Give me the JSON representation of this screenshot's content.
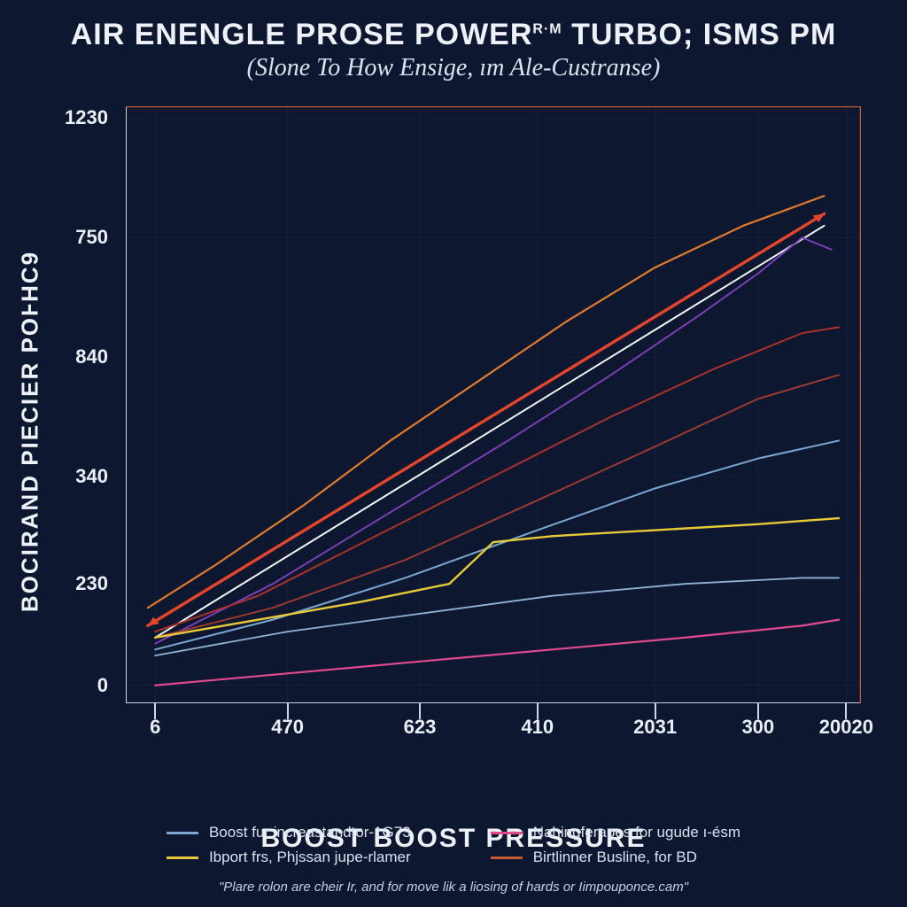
{
  "title_parts": {
    "a": "AIR ENENGLE PROSE POWER",
    "tm": "R·M",
    "b": " TURBO; ISMS PM"
  },
  "subtitle": "(Slone To How Ensige, ım Ale-Custranse)",
  "ylabel": "BOCIRAND PIECIER POⱵHC9",
  "xlabel": "BOOST BOOST PRESSURE",
  "footnote": "\"Plare rolon are cheir Ir, and for move lik a liosing of hards or Iimpouponce.cam\"",
  "chart": {
    "type": "line",
    "background_color": "#0e1730",
    "axis_color": "#d0d6e2",
    "grid_color": "#2a3550",
    "top_border_color": "#c85a2f",
    "right_border_color": "#c85a2f",
    "xlim": [
      0,
      100
    ],
    "ylim": [
      0,
      100
    ],
    "yticks": [
      {
        "pos": 3,
        "label": "0"
      },
      {
        "pos": 20,
        "label": "230"
      },
      {
        "pos": 38,
        "label": "340"
      },
      {
        "pos": 58,
        "label": "840"
      },
      {
        "pos": 78,
        "label": "750"
      },
      {
        "pos": 98,
        "label": "1230"
      }
    ],
    "xticks": [
      {
        "pos": 4,
        "label": "6"
      },
      {
        "pos": 22,
        "label": "470"
      },
      {
        "pos": 40,
        "label": "623"
      },
      {
        "pos": 56,
        "label": "410"
      },
      {
        "pos": 72,
        "label": "2031"
      },
      {
        "pos": 86,
        "label": "300"
      },
      {
        "pos": 98,
        "label": "20020"
      }
    ],
    "series": [
      {
        "name": "orange-top",
        "color": "#e07a2c",
        "width": 2.2,
        "points": [
          [
            3,
            16
          ],
          [
            12,
            23
          ],
          [
            24,
            33
          ],
          [
            36,
            44
          ],
          [
            48,
            54
          ],
          [
            60,
            64
          ],
          [
            72,
            73
          ],
          [
            84,
            80
          ],
          [
            95,
            85
          ]
        ]
      },
      {
        "name": "red-main",
        "color": "#e5452b",
        "width": 3.4,
        "points": [
          [
            3,
            13
          ],
          [
            95,
            82
          ]
        ],
        "arrow_end": true,
        "arrow_start": true
      },
      {
        "name": "white-center",
        "color": "#f3f5fb",
        "width": 2.0,
        "points": [
          [
            4,
            11
          ],
          [
            95,
            80
          ]
        ]
      },
      {
        "name": "purple",
        "color": "#7a3fb5",
        "width": 2.0,
        "points": [
          [
            4,
            10
          ],
          [
            20,
            20
          ],
          [
            36,
            32
          ],
          [
            52,
            44
          ],
          [
            66,
            55
          ],
          [
            78,
            65
          ],
          [
            86,
            72
          ],
          [
            92,
            78
          ],
          [
            96,
            76
          ]
        ]
      },
      {
        "name": "darkred-1",
        "color": "#a8332a",
        "width": 2.0,
        "points": [
          [
            4,
            12
          ],
          [
            18,
            18
          ],
          [
            34,
            28
          ],
          [
            50,
            38
          ],
          [
            66,
            48
          ],
          [
            80,
            56
          ],
          [
            92,
            62
          ],
          [
            97,
            63
          ]
        ]
      },
      {
        "name": "darkred-2",
        "color": "#9a3a30",
        "width": 2.0,
        "points": [
          [
            4,
            11
          ],
          [
            20,
            16
          ],
          [
            38,
            24
          ],
          [
            56,
            34
          ],
          [
            72,
            43
          ],
          [
            86,
            51
          ],
          [
            97,
            55
          ]
        ]
      },
      {
        "name": "lightblue-1",
        "color": "#7aa7cf",
        "width": 2.0,
        "points": [
          [
            4,
            9
          ],
          [
            20,
            14
          ],
          [
            38,
            21
          ],
          [
            56,
            29
          ],
          [
            72,
            36
          ],
          [
            86,
            41
          ],
          [
            97,
            44
          ]
        ]
      },
      {
        "name": "yellow",
        "color": "#e7c93a",
        "width": 2.4,
        "points": [
          [
            4,
            11
          ],
          [
            18,
            14
          ],
          [
            32,
            17
          ],
          [
            44,
            20
          ],
          [
            50,
            27
          ],
          [
            58,
            28
          ],
          [
            72,
            29
          ],
          [
            86,
            30
          ],
          [
            97,
            31
          ]
        ]
      },
      {
        "name": "lightblue-2",
        "color": "#8fb4d6",
        "width": 1.8,
        "points": [
          [
            4,
            8
          ],
          [
            22,
            12
          ],
          [
            40,
            15
          ],
          [
            58,
            18
          ],
          [
            76,
            20
          ],
          [
            92,
            21
          ],
          [
            97,
            21
          ]
        ]
      },
      {
        "name": "pink",
        "color": "#e04a8c",
        "width": 2.2,
        "points": [
          [
            4,
            3
          ],
          [
            22,
            5
          ],
          [
            40,
            7
          ],
          [
            58,
            9
          ],
          [
            76,
            11
          ],
          [
            92,
            13
          ],
          [
            97,
            14
          ]
        ]
      }
    ]
  },
  "legend": {
    "left": [
      {
        "color": "#7aa7cf",
        "label": "Boost fur increastandtor-1G73"
      },
      {
        "color": "#e7c93a",
        "label": "Ibport frs, Phjssan jupe-rlamer"
      }
    ],
    "right": [
      {
        "color": "#e04a8c",
        "label": "Nahingferapes for ugude ı-ésm"
      },
      {
        "color": "#c85a2f",
        "label": "Birtlinner Busline, for BD"
      }
    ]
  }
}
